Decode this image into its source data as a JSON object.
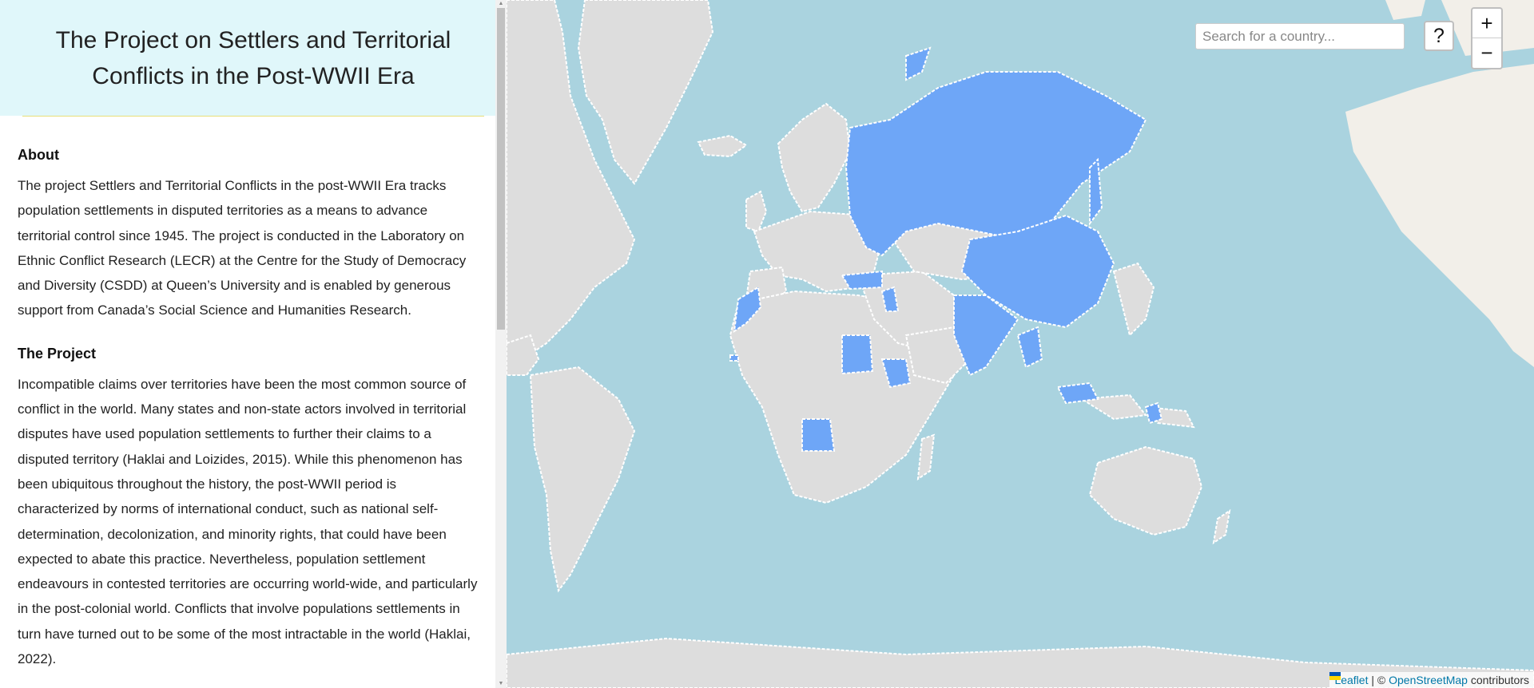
{
  "sidebar": {
    "title": "The Project on Settlers and Territorial Conflicts in the Post-WWII Era",
    "sections": [
      {
        "heading": "About",
        "body": "The project Settlers and Territorial Conflicts in the post-WWII Era tracks population settlements in disputed territories as a means to advance territorial control since 1945. The project is conducted in the Laboratory on Ethnic Conflict Research (LECR) at the Centre for the Study of Democracy and Diversity (CSDD) at Queen’s University and is enabled by generous support from Canada’s Social Science and Humanities Research."
      },
      {
        "heading": "The Project",
        "body": "Incompatible claims over territories have been the most common source of conflict in the world. Many states and non-state actors involved in territorial disputes have used population settlements to further their claims to a disputed territory (Haklai and Loizides, 2015). While this phenomenon has been ubiquitous throughout the history, the post-WWII period is characterized by norms of international conduct, such as national self-determination, decolonization, and minority rights, that could have been expected to abate this practice. Nevertheless, population settlement endeavours in contested territories are occurring world-wide, and particularly in the post-colonial world. Conflicts that involve populations settlements in turn have turned out to be some of the most intractable in the world (Haklai, 2022)."
      }
    ]
  },
  "map": {
    "search_placeholder": "Search for a country...",
    "help_label": "?",
    "zoom_in_label": "+",
    "zoom_out_label": "−",
    "attribution": {
      "leaflet": "Leaflet",
      "separator": " | © ",
      "osm": "OpenStreetMap",
      "suffix": " contributors"
    },
    "colors": {
      "water": "#aad3df",
      "land": "#dddddd",
      "land_light": "#f2efe9",
      "highlight": "#6ea6f7",
      "border": "#ffffff"
    }
  }
}
